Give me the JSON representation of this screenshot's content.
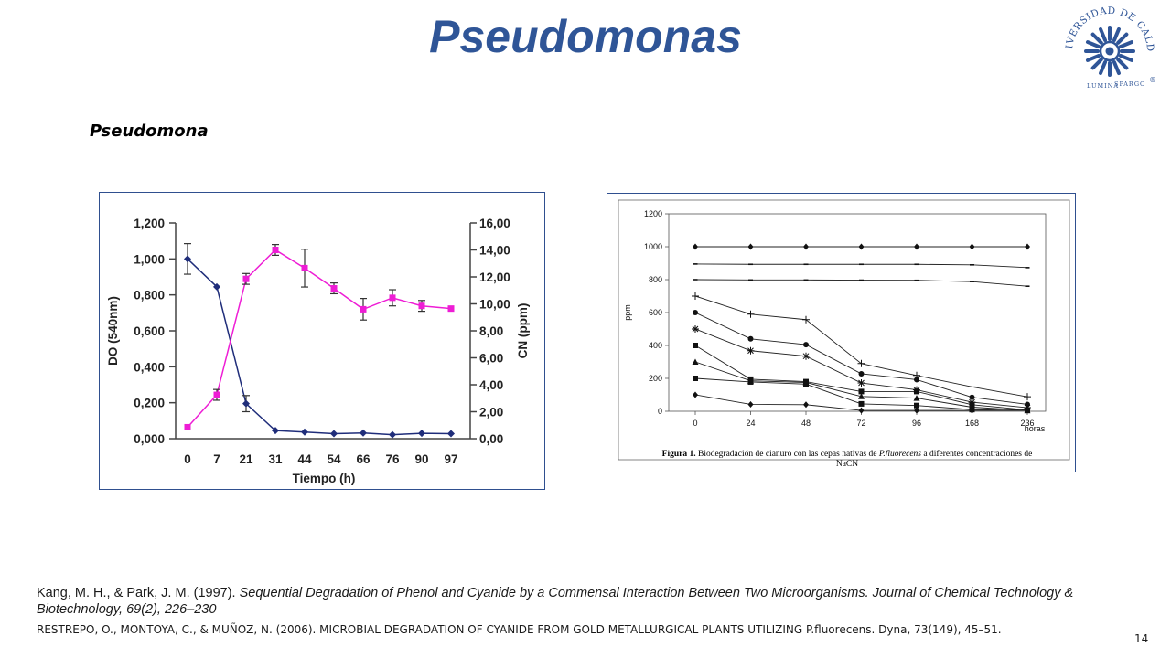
{
  "slide": {
    "title": "Pseudomonas",
    "subtitle": "Pseudomona",
    "page_number": "14"
  },
  "logo": {
    "text_top": "UNIVERSIDAD DE CALDAS",
    "text_bottom_left": "LUMINA",
    "text_bottom_right": "SPARGO",
    "registered": "®",
    "color": "#2f5597"
  },
  "references": {
    "ref1_authors": "Kang, M. H., & Park, J. M. (1997). ",
    "ref1_title": "Sequential Degradation of Phenol and Cyanide by a Commensal Interaction Between Two Microorganisms. Journal of Chemical Technology & Biotechnology, 69(2), 226–230",
    "ref2": "RESTREPO, O., MONTOYA, C., & MUÑOZ, N. (2006). MICROBIAL DEGRADATION OF CYANIDE FROM GOLD METALLURGICAL PLANTS UTILIZING P.fluorecens. Dyna, 73(149), 45–51."
  },
  "chart_data": [
    {
      "type": "line",
      "categories": [
        "0",
        "7",
        "21",
        "31",
        "44",
        "54",
        "66",
        "76",
        "90",
        "97"
      ],
      "xlabel": "Tiempo (h)",
      "ylabel_left": "DO (540nm)",
      "ylabel_right": "CN (ppm)",
      "ylim_left": [
        0,
        1.2
      ],
      "ylim_right": [
        0,
        16
      ],
      "yticks_left": [
        "0,000",
        "0,200",
        "0,400",
        "0,600",
        "0,800",
        "1,000",
        "1,200"
      ],
      "yticks_right": [
        "0,00",
        "2,00",
        "4,00",
        "6,00",
        "8,00",
        "10,00",
        "12,00",
        "14,00",
        "16,00"
      ],
      "series": [
        {
          "axis": "left",
          "color": "#1f2d7a",
          "marker": "diamond",
          "values": [
            1.0,
            0.845,
            0.195,
            0.045,
            0.037,
            0.028,
            0.032,
            0.022,
            0.03,
            0.028
          ],
          "errors": [
            0.085,
            0,
            0.045,
            0,
            0,
            0,
            0,
            0,
            0,
            0
          ]
        },
        {
          "axis": "right",
          "color": "#ee1dd5",
          "marker": "square",
          "values": [
            0.85,
            3.25,
            11.85,
            14.0,
            12.65,
            11.15,
            9.6,
            10.45,
            9.85,
            9.65
          ],
          "errors": [
            0,
            0.4,
            0.4,
            0.4,
            1.4,
            0.4,
            0.8,
            0.6,
            0.4,
            0
          ]
        }
      ]
    },
    {
      "type": "line",
      "categories": [
        "0",
        "24",
        "48",
        "72",
        "96",
        "168",
        "236"
      ],
      "xlabel": "horas",
      "ylabel": "ppm",
      "ylim": [
        0,
        1200
      ],
      "yticks": [
        "0",
        "200",
        "400",
        "600",
        "800",
        "1000",
        "1200"
      ],
      "caption_label": "Figura 1.",
      "caption_text": " Biodegradación de cianuro con las cepas nativas de ",
      "caption_species": "P.fluorecens",
      "caption_tail": " a diferentes concentraciones de",
      "caption_line2": "NaCN",
      "series": [
        {
          "marker": "diamond",
          "values": [
            1000,
            1000,
            1000,
            1000,
            1000,
            1000,
            1000
          ]
        },
        {
          "marker": "dash",
          "values": [
            895,
            893,
            893,
            893,
            893,
            890,
            873
          ]
        },
        {
          "marker": "dash",
          "values": [
            800,
            798,
            798,
            797,
            796,
            788,
            760
          ]
        },
        {
          "marker": "plus",
          "values": [
            700,
            590,
            557,
            290,
            218,
            148,
            88
          ]
        },
        {
          "marker": "circle",
          "values": [
            600,
            440,
            405,
            228,
            192,
            85,
            42
          ]
        },
        {
          "marker": "asterisk",
          "values": [
            500,
            368,
            335,
            172,
            130,
            55,
            22
          ]
        },
        {
          "marker": "square",
          "values": [
            400,
            195,
            180,
            120,
            120,
            40,
            8
          ]
        },
        {
          "marker": "triangle",
          "values": [
            300,
            185,
            175,
            90,
            80,
            25,
            5
          ]
        },
        {
          "marker": "square",
          "values": [
            200,
            178,
            165,
            45,
            35,
            10,
            5
          ]
        },
        {
          "marker": "diamond",
          "values": [
            100,
            42,
            40,
            5,
            5,
            5,
            5
          ]
        }
      ]
    }
  ]
}
